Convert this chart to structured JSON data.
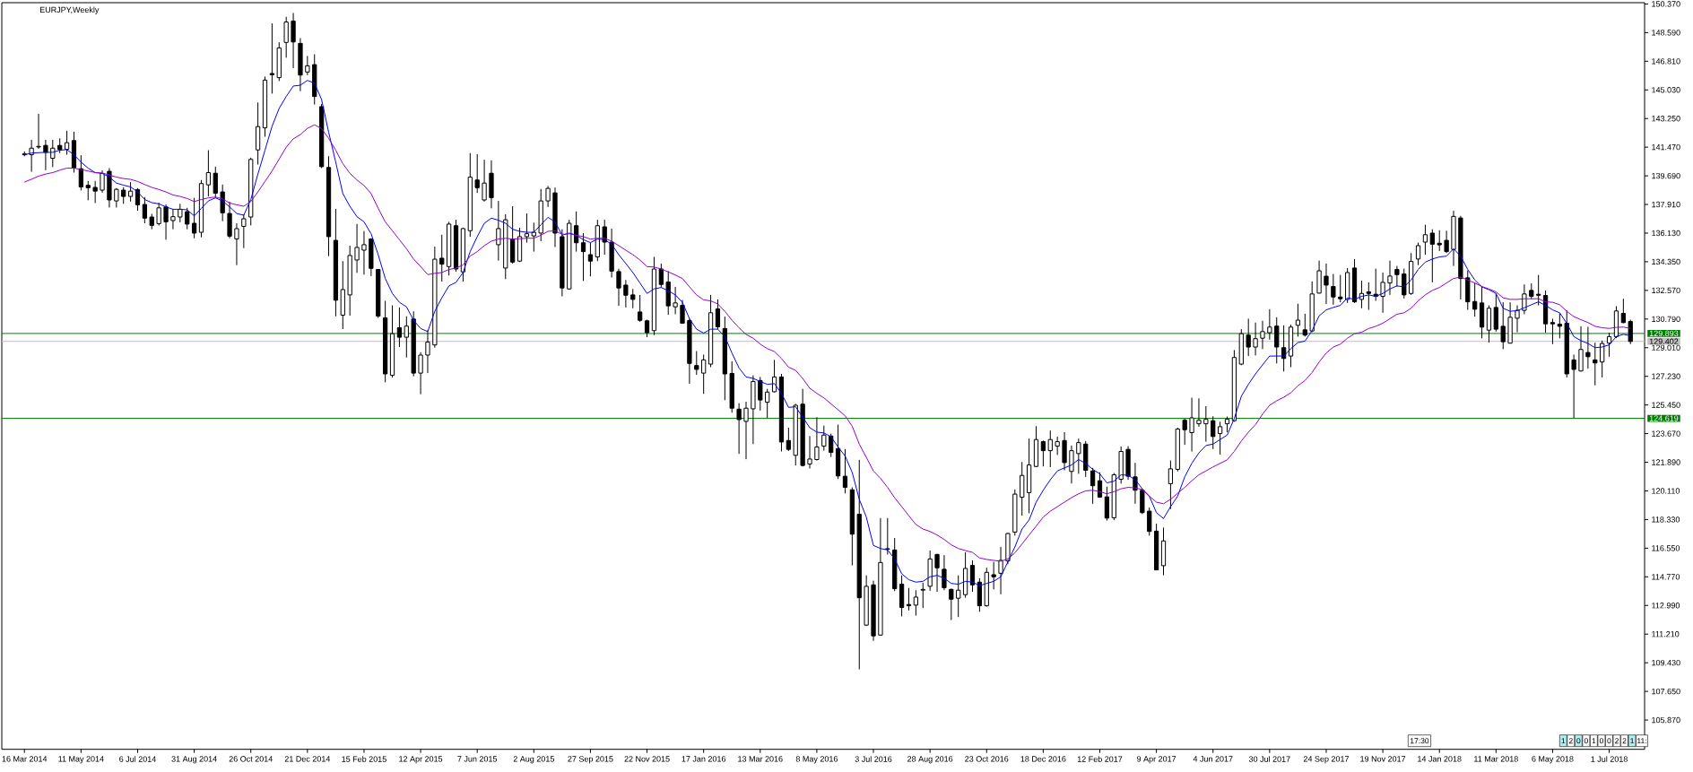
{
  "chart_data": {
    "type": "candlestick",
    "title": "EURJPY,Weekly",
    "categories": [
      "16 Mar 2014",
      null,
      null,
      null,
      null,
      null,
      null,
      null,
      "11 May 2014",
      null,
      null,
      null,
      null,
      null,
      null,
      null,
      "6 Jul 2014",
      null,
      null,
      null,
      null,
      null,
      null,
      null,
      "31 Aug 2014",
      null,
      null,
      null,
      null,
      null,
      null,
      null,
      "26 Oct 2014",
      null,
      null,
      null,
      null,
      null,
      null,
      null,
      "21 Dec 2014",
      null,
      null,
      null,
      null,
      null,
      null,
      null,
      "15 Feb 2015",
      null,
      null,
      null,
      null,
      null,
      null,
      null,
      "12 Apr 2015",
      null,
      null,
      null,
      null,
      null,
      null,
      null,
      "7 Jun 2015",
      null,
      null,
      null,
      null,
      null,
      null,
      null,
      "2 Aug 2015",
      null,
      null,
      null,
      null,
      null,
      null,
      null,
      "27 Sep 2015",
      null,
      null,
      null,
      null,
      null,
      null,
      null,
      "22 Nov 2015",
      null,
      null,
      null,
      null,
      null,
      null,
      null,
      "17 Jan 2016",
      null,
      null,
      null,
      null,
      null,
      null,
      null,
      "13 Mar 2016",
      null,
      null,
      null,
      null,
      null,
      null,
      null,
      "8 May 2016",
      null,
      null,
      null,
      null,
      null,
      null,
      null,
      "3 Jul 2016",
      null,
      null,
      null,
      null,
      null,
      null,
      null,
      "28 Aug 2016",
      null,
      null,
      null,
      null,
      null,
      null,
      null,
      "23 Oct 2016",
      null,
      null,
      null,
      null,
      null,
      null,
      null,
      "18 Dec 2016",
      null,
      null,
      null,
      null,
      null,
      null,
      null,
      "12 Feb 2017",
      null,
      null,
      null,
      null,
      null,
      null,
      null,
      "9 Apr 2017",
      null,
      null,
      null,
      null,
      null,
      null,
      null,
      "4 Jun 2017",
      null,
      null,
      null,
      null,
      null,
      null,
      null,
      "30 Jul 2017",
      null,
      null,
      null,
      null,
      null,
      null,
      null,
      "24 Sep 2017",
      null,
      null,
      null,
      null,
      null,
      null,
      null,
      "19 Nov 2017",
      null,
      null,
      null,
      null,
      null,
      null,
      null,
      "14 Jan 2018",
      null,
      null,
      null,
      null,
      null,
      null,
      null,
      "11 Mar 2018",
      null,
      null,
      null,
      null,
      null,
      null,
      null,
      "6 May 2018",
      null,
      null,
      null,
      null,
      null,
      null,
      null,
      "1 Jul 2018",
      null,
      null,
      null
    ],
    "ohlc": [
      [
        141.05,
        141.2,
        140.9,
        141.0
      ],
      [
        141.0,
        141.93,
        139.94,
        141.41
      ],
      [
        141.48,
        143.54,
        141.37,
        141.52
      ],
      [
        141.58,
        141.93,
        140.04,
        141.15
      ],
      [
        140.78,
        141.93,
        140.23,
        141.41
      ],
      [
        141.58,
        142.02,
        141.1,
        141.32
      ],
      [
        141.34,
        142.49,
        141.0,
        141.75
      ],
      [
        141.88,
        142.43,
        139.89,
        140.17
      ],
      [
        140.13,
        140.97,
        138.78,
        139.0
      ],
      [
        139.1,
        139.37,
        138.17,
        138.95
      ],
      [
        138.97,
        139.37,
        138.0,
        138.74
      ],
      [
        138.8,
        140.02,
        138.65,
        139.84
      ],
      [
        139.97,
        140.17,
        137.72,
        138.19
      ],
      [
        138.13,
        138.93,
        137.72,
        138.85
      ],
      [
        138.8,
        138.98,
        137.95,
        138.41
      ],
      [
        138.41,
        139.3,
        138.09,
        138.74
      ],
      [
        138.84,
        138.93,
        137.52,
        137.89
      ],
      [
        137.91,
        138.37,
        136.74,
        137.06
      ],
      [
        137.13,
        137.33,
        136.37,
        136.61
      ],
      [
        136.72,
        138.02,
        136.61,
        137.7
      ],
      [
        137.76,
        137.91,
        135.72,
        136.83
      ],
      [
        136.91,
        137.63,
        136.37,
        137.15
      ],
      [
        137.13,
        137.95,
        136.8,
        137.61
      ],
      [
        137.46,
        137.7,
        136.37,
        136.69
      ],
      [
        136.74,
        138.32,
        135.81,
        136.13
      ],
      [
        136.18,
        139.43,
        135.87,
        139.21
      ],
      [
        139.13,
        141.28,
        138.41,
        139.89
      ],
      [
        139.85,
        140.26,
        138.32,
        138.61
      ],
      [
        138.69,
        139.15,
        136.87,
        137.39
      ],
      [
        137.35,
        138.08,
        135.81,
        135.94
      ],
      [
        135.77,
        136.74,
        134.14,
        136.41
      ],
      [
        136.55,
        137.3,
        135.2,
        137.02
      ],
      [
        137.13,
        140.82,
        136.61,
        140.71
      ],
      [
        141.3,
        144.25,
        140.39,
        142.75
      ],
      [
        142.67,
        145.86,
        142.12,
        145.64
      ],
      [
        146.05,
        149.16,
        144.8,
        145.97
      ],
      [
        145.79,
        147.99,
        145.58,
        147.64
      ],
      [
        147.98,
        149.57,
        147.03,
        149.25
      ],
      [
        149.31,
        149.81,
        146.38,
        148.01
      ],
      [
        147.92,
        148.25,
        144.95,
        145.95
      ],
      [
        146.14,
        147.14,
        145.95,
        146.53
      ],
      [
        146.6,
        147.25,
        144.12,
        144.62
      ],
      [
        143.99,
        144.16,
        140.17,
        140.26
      ],
      [
        140.21,
        140.91,
        134.7,
        135.91
      ],
      [
        135.68,
        137.63,
        130.96,
        131.96
      ],
      [
        131.03,
        134.39,
        130.16,
        132.62
      ],
      [
        132.29,
        135.35,
        131.0,
        134.74
      ],
      [
        134.46,
        136.7,
        133.66,
        135.24
      ],
      [
        135.07,
        136.26,
        133.55,
        135.41
      ],
      [
        135.76,
        135.81,
        133.46,
        133.94
      ],
      [
        133.87,
        133.9,
        130.86,
        130.97
      ],
      [
        130.86,
        131.92,
        126.86,
        127.38
      ],
      [
        127.29,
        131.64,
        127.15,
        129.88
      ],
      [
        130.25,
        131.51,
        129.05,
        129.66
      ],
      [
        129.66,
        130.96,
        128.4,
        130.35
      ],
      [
        130.79,
        131.27,
        127.23,
        127.43
      ],
      [
        127.43,
        128.73,
        126.12,
        128.55
      ],
      [
        128.55,
        130.1,
        127.43,
        129.36
      ],
      [
        129.18,
        135.29,
        129.01,
        134.51
      ],
      [
        134.57,
        136.03,
        133.12,
        134.2
      ],
      [
        134.05,
        136.83,
        133.5,
        136.69
      ],
      [
        136.59,
        136.96,
        133.74,
        133.9
      ],
      [
        133.72,
        136.46,
        133.12,
        136.41
      ],
      [
        136.28,
        141.1,
        135.9,
        139.61
      ],
      [
        139.43,
        141.04,
        138.63,
        138.95
      ],
      [
        138.19,
        140.69,
        138.09,
        139.24
      ],
      [
        139.85,
        140.65,
        137.67,
        138.33
      ],
      [
        135.41,
        138.13,
        134.42,
        136.41
      ],
      [
        133.96,
        137.3,
        133.27,
        136.96
      ],
      [
        135.76,
        137.8,
        134.24,
        134.33
      ],
      [
        134.39,
        136.46,
        134.33,
        135.91
      ],
      [
        135.91,
        137.35,
        135.54,
        136.09
      ],
      [
        135.96,
        136.78,
        134.98,
        136.18
      ],
      [
        136.13,
        138.87,
        135.63,
        138.13
      ],
      [
        138.13,
        139.06,
        137.76,
        138.91
      ],
      [
        138.63,
        138.96,
        135.26,
        136.13
      ],
      [
        135.91,
        136.37,
        132.2,
        132.72
      ],
      [
        132.66,
        136.96,
        132.61,
        136.74
      ],
      [
        136.59,
        137.48,
        134.98,
        135.53
      ],
      [
        135.53,
        136.13,
        133.16,
        134.98
      ],
      [
        134.79,
        135.53,
        133.44,
        134.39
      ],
      [
        134.65,
        136.96,
        134.39,
        136.59
      ],
      [
        136.52,
        136.96,
        134.79,
        135.57
      ],
      [
        135.57,
        136.41,
        133.37,
        133.77
      ],
      [
        133.74,
        133.92,
        131.61,
        132.72
      ],
      [
        132.9,
        133.22,
        131.51,
        132.27
      ],
      [
        132.29,
        132.66,
        131.46,
        132.01
      ],
      [
        131.23,
        132.29,
        130.62,
        130.71
      ],
      [
        130.68,
        130.75,
        129.66,
        129.94
      ],
      [
        130.07,
        134.65,
        129.79,
        133.9
      ],
      [
        133.9,
        134.24,
        132.75,
        132.94
      ],
      [
        133.09,
        133.77,
        131.05,
        131.61
      ],
      [
        131.55,
        132.79,
        131.09,
        131.79
      ],
      [
        131.64,
        131.97,
        130.49,
        130.53
      ],
      [
        130.7,
        130.81,
        126.77,
        128.03
      ],
      [
        127.9,
        128.8,
        127.32,
        127.66
      ],
      [
        127.43,
        128.58,
        126.14,
        128.25
      ],
      [
        127.99,
        132.29,
        127.8,
        131.18
      ],
      [
        131.42,
        132.01,
        130.16,
        130.31
      ],
      [
        130.2,
        130.94,
        125.75,
        127.38
      ],
      [
        127.41,
        128.16,
        124.97,
        125.25
      ],
      [
        125.19,
        125.56,
        122.41,
        124.54
      ],
      [
        124.43,
        125.65,
        122.08,
        125.25
      ],
      [
        125.21,
        127.29,
        123.02,
        126.91
      ],
      [
        126.97,
        127.19,
        125.1,
        125.76
      ],
      [
        125.62,
        126.45,
        124.65,
        126.25
      ],
      [
        126.27,
        128.25,
        126.23,
        127.19
      ],
      [
        127.19,
        127.38,
        122.56,
        123.15
      ],
      [
        123.24,
        124.04,
        122.59,
        122.69
      ],
      [
        122.32,
        125.52,
        121.69,
        125.43
      ],
      [
        125.5,
        126.45,
        121.63,
        121.69
      ],
      [
        121.78,
        123.52,
        121.5,
        122.09
      ],
      [
        122.06,
        124.69,
        122.0,
        122.84
      ],
      [
        122.89,
        124.17,
        122.61,
        123.58
      ],
      [
        123.52,
        123.67,
        122.22,
        122.5
      ],
      [
        122.74,
        124.23,
        120.85,
        121.04
      ],
      [
        121.02,
        122.71,
        119.96,
        120.33
      ],
      [
        120.18,
        120.33,
        115.48,
        117.42
      ],
      [
        118.66,
        122.04,
        109.02,
        113.47
      ],
      [
        111.77,
        114.86,
        111.71,
        114.18
      ],
      [
        114.27,
        114.53,
        110.79,
        111.1
      ],
      [
        111.15,
        118.42,
        111.12,
        115.66
      ],
      [
        116.48,
        118.42,
        116.16,
        116.52
      ],
      [
        116.44,
        117.18,
        113.88,
        114.03
      ],
      [
        114.31,
        114.86,
        112.31,
        112.86
      ],
      [
        113.05,
        114.08,
        112.68,
        112.97
      ],
      [
        113.01,
        113.94,
        112.36,
        113.51
      ],
      [
        113.94,
        114.4,
        112.83,
        113.99
      ],
      [
        114.18,
        116.4,
        113.9,
        115.88
      ],
      [
        116.16,
        116.2,
        113.84,
        115.33
      ],
      [
        115.24,
        116.12,
        113.94,
        114.09
      ],
      [
        113.99,
        114.04,
        112.08,
        113.38
      ],
      [
        113.44,
        114.86,
        112.27,
        113.94
      ],
      [
        113.66,
        116.29,
        113.47,
        115.29
      ],
      [
        115.48,
        115.79,
        113.84,
        114.27
      ],
      [
        114.44,
        114.68,
        112.6,
        112.97
      ],
      [
        112.97,
        115.33,
        112.92,
        115.05
      ],
      [
        114.9,
        115.7,
        113.99,
        114.77
      ],
      [
        114.99,
        116.63,
        113.69,
        115.79
      ],
      [
        115.76,
        117.5,
        115.55,
        117.46
      ],
      [
        117.55,
        120.2,
        117.33,
        119.91
      ],
      [
        119.72,
        121.91,
        118.57,
        121.07
      ],
      [
        120.0,
        123.36,
        118.72,
        121.72
      ],
      [
        121.63,
        124.13,
        121.59,
        123.3
      ],
      [
        123.17,
        123.24,
        121.63,
        122.61
      ],
      [
        122.61,
        123.86,
        121.59,
        123.3
      ],
      [
        122.89,
        123.48,
        122.34,
        123.17
      ],
      [
        123.24,
        123.76,
        121.39,
        121.87
      ],
      [
        121.32,
        122.93,
        120.57,
        122.61
      ],
      [
        122.43,
        123.36,
        121.17,
        123.11
      ],
      [
        123.02,
        123.21,
        120.98,
        121.39
      ],
      [
        121.35,
        121.54,
        119.31,
        120.43
      ],
      [
        120.74,
        121.26,
        119.68,
        119.72
      ],
      [
        119.74,
        120.37,
        118.26,
        118.42
      ],
      [
        118.44,
        121.22,
        118.29,
        121.11
      ],
      [
        120.83,
        122.87,
        120.56,
        122.56
      ],
      [
        122.69,
        122.89,
        120.8,
        121.02
      ],
      [
        120.98,
        121.85,
        119.31,
        120.15
      ],
      [
        120.15,
        120.24,
        118.67,
        118.76
      ],
      [
        118.85,
        119.07,
        117.33,
        117.59
      ],
      [
        117.61,
        118.07,
        115.2,
        115.2
      ],
      [
        115.46,
        117.83,
        114.87,
        117.0
      ],
      [
        120.56,
        122.0,
        118.98,
        121.48
      ],
      [
        121.45,
        124.04,
        121.32,
        123.95
      ],
      [
        124.5,
        124.6,
        122.97,
        123.91
      ],
      [
        123.73,
        125.9,
        122.56,
        124.65
      ],
      [
        124.28,
        125.86,
        124.1,
        124.5
      ],
      [
        124.28,
        125.38,
        123.17,
        124.56
      ],
      [
        124.47,
        124.75,
        122.71,
        123.49
      ],
      [
        123.67,
        124.41,
        122.37,
        124.1
      ],
      [
        124.28,
        124.73,
        123.76,
        124.56
      ],
      [
        124.47,
        128.86,
        124.41,
        128.4
      ],
      [
        127.99,
        130.16,
        127.92,
        129.88
      ],
      [
        129.79,
        130.81,
        128.49,
        129.05
      ],
      [
        129.05,
        130.57,
        128.53,
        129.57
      ],
      [
        129.6,
        130.68,
        128.92,
        130.01
      ],
      [
        129.94,
        131.4,
        129.51,
        130.29
      ],
      [
        130.35,
        130.9,
        128.03,
        129.05
      ],
      [
        129.01,
        130.4,
        127.53,
        128.34
      ],
      [
        128.49,
        130.44,
        127.8,
        130.29
      ],
      [
        130.4,
        131.74,
        129.7,
        130.72
      ],
      [
        130.12,
        131.12,
        129.7,
        129.79
      ],
      [
        130.05,
        133.13,
        129.97,
        132.35
      ],
      [
        132.4,
        134.42,
        132.38,
        133.79
      ],
      [
        133.45,
        134.24,
        131.72,
        132.9
      ],
      [
        132.81,
        133.59,
        131.68,
        132.16
      ],
      [
        132.16,
        133.53,
        131.83,
        132.05
      ],
      [
        132.01,
        133.96,
        131.79,
        133.68
      ],
      [
        133.96,
        134.52,
        131.79,
        131.86
      ],
      [
        132.01,
        133.18,
        131.46,
        132.38
      ],
      [
        132.48,
        133.07,
        131.36,
        132.38
      ],
      [
        132.33,
        133.92,
        131.92,
        132.2
      ],
      [
        132.2,
        133.68,
        131.18,
        133.07
      ],
      [
        133.03,
        134.42,
        132.29,
        133.46
      ],
      [
        133.87,
        134.09,
        132.81,
        133.55
      ],
      [
        133.59,
        133.92,
        132.07,
        132.29
      ],
      [
        132.38,
        134.89,
        132.29,
        134.37
      ],
      [
        134.52,
        135.54,
        134.14,
        135.35
      ],
      [
        135.57,
        136.65,
        134.79,
        136.03
      ],
      [
        136.13,
        136.37,
        133.07,
        135.44
      ],
      [
        135.5,
        136.31,
        135.02,
        135.4
      ],
      [
        135.68,
        136.28,
        134.89,
        134.98
      ],
      [
        135.11,
        137.52,
        134.09,
        137.17
      ],
      [
        137.07,
        137.2,
        132.01,
        133.31
      ],
      [
        133.35,
        133.81,
        131.36,
        131.86
      ],
      [
        131.88,
        133.03,
        130.94,
        131.4
      ],
      [
        131.79,
        132.81,
        129.59,
        130.29
      ],
      [
        130.1,
        131.64,
        129.33,
        131.46
      ],
      [
        131.51,
        132.38,
        130.01,
        130.16
      ],
      [
        130.34,
        131.83,
        128.92,
        129.38
      ],
      [
        129.29,
        131.83,
        129.27,
        130.9
      ],
      [
        130.84,
        131.64,
        129.97,
        131.33
      ],
      [
        131.33,
        132.94,
        131.09,
        132.35
      ],
      [
        132.57,
        133.0,
        132.05,
        132.2
      ],
      [
        132.33,
        133.53,
        131.64,
        132.27
      ],
      [
        132.25,
        132.57,
        129.94,
        130.49
      ],
      [
        130.57,
        130.81,
        129.23,
        130.49
      ],
      [
        130.47,
        131.14,
        129.59,
        130.34
      ],
      [
        130.53,
        131.33,
        127.16,
        127.38
      ],
      [
        128.25,
        128.58,
        124.63,
        127.66
      ],
      [
        127.56,
        130.34,
        127.53,
        128.9
      ],
      [
        128.71,
        130.31,
        127.71,
        128.45
      ],
      [
        128.25,
        129.32,
        126.67,
        128.06
      ],
      [
        128.12,
        129.45,
        127.16,
        129.27
      ],
      [
        129.29,
        129.94,
        128.45,
        129.7
      ],
      [
        129.7,
        131.59,
        129.6,
        131.29
      ],
      [
        131.14,
        132.05,
        130.53,
        130.57
      ],
      [
        130.64,
        130.75,
        129.23,
        129.4
      ]
    ],
    "series": [
      {
        "type": "line",
        "color": "#0000ff",
        "values": [
          141.0,
          141.1,
          141.13,
          141.15,
          141.15,
          141.28,
          141.32,
          141.0,
          140.54,
          140.17,
          139.89,
          139.84,
          139.61,
          139.24,
          139.11,
          139.0,
          138.69,
          138.22,
          138.02,
          137.95,
          137.76,
          137.61,
          137.61,
          137.58,
          137.2,
          137.67,
          138.13,
          138.32,
          138.13,
          137.76,
          137.35,
          137.24,
          138.22,
          139.8,
          141.28,
          142.77,
          143.88,
          144.62,
          145.27,
          145.32,
          145.62,
          145.45,
          144.43,
          142.4,
          140.54,
          138.59,
          137.8,
          137.15,
          136.83,
          136.09,
          134.79,
          133.31,
          132.38,
          131.83,
          131.55,
          130.72,
          130.2,
          130.01,
          131.27,
          132.11,
          132.85,
          133.07,
          133.68,
          134.98,
          135.91,
          136.74,
          137.06,
          136.93,
          136.74,
          136.37,
          136.24,
          136.18,
          136.18,
          136.65,
          137.11,
          136.83,
          136.0,
          136.13,
          136.0,
          135.72,
          135.54,
          135.76,
          135.72,
          135.44,
          134.79,
          134.24,
          133.68,
          133.03,
          132.38,
          132.66,
          132.75,
          132.55,
          132.29,
          131.83,
          130.81,
          130.16,
          129.92,
          130.16,
          130.16,
          129.7,
          128.68,
          127.75,
          127.19,
          127.1,
          126.91,
          126.73,
          126.78,
          126.17,
          125.3,
          125.34,
          124.69,
          124.04,
          123.76,
          123.71,
          123.48,
          122.84,
          122.28,
          121.26,
          119.59,
          118.48,
          116.72,
          116.53,
          116.44,
          115.88,
          114.96,
          114.59,
          114.44,
          114.49,
          114.77,
          114.86,
          114.68,
          114.36,
          114.31,
          114.49,
          114.44,
          114.22,
          114.36,
          114.49,
          114.77,
          115.7,
          116.63,
          117.74,
          118.3,
          119.41,
          120.15,
          120.8,
          121.35,
          121.54,
          121.72,
          122.06,
          121.82,
          121.45,
          121.17,
          120.61,
          120.71,
          121.11,
          121.08,
          120.8,
          120.24,
          119.78,
          118.76,
          118.39,
          119.13,
          119.78,
          120.98,
          121.82,
          122.47,
          122.93,
          123.02,
          123.3,
          123.58,
          124.6,
          125.99,
          126.73,
          127.38,
          127.94,
          128.49,
          128.49,
          128.49,
          128.95,
          129.33,
          129.42,
          130.07,
          130.99,
          131.36,
          131.51,
          131.64,
          132.11,
          132.01,
          132.2,
          132.29,
          132.2,
          132.38,
          132.66,
          132.85,
          132.79,
          133.22,
          133.87,
          134.33,
          134.52,
          134.65,
          134.7,
          135.16,
          134.7,
          133.87,
          133.22,
          132.79,
          132.61,
          132.38,
          131.46,
          131.27,
          131.31,
          131.49,
          131.68,
          131.86,
          131.64,
          131.36,
          131.18,
          130.53,
          129.7,
          129.45,
          129.27,
          129.01,
          129.05,
          129.19,
          129.7,
          129.84,
          129.75
        ]
      },
      {
        "type": "line",
        "color": "#9400d3",
        "values": [
          139.3,
          139.48,
          139.67,
          139.8,
          139.89,
          140.04,
          140.17,
          140.17,
          140.08,
          139.99,
          139.89,
          139.86,
          139.74,
          139.61,
          139.52,
          139.47,
          139.34,
          139.15,
          138.97,
          138.84,
          138.69,
          138.5,
          138.41,
          138.28,
          138.09,
          138.22,
          138.32,
          138.37,
          138.26,
          138.0,
          137.89,
          137.8,
          138.09,
          138.69,
          139.34,
          139.99,
          140.73,
          141.47,
          141.99,
          142.25,
          142.64,
          142.86,
          142.62,
          142.02,
          141.28,
          140.45,
          139.85,
          139.43,
          139.09,
          138.59,
          137.67,
          136.83,
          136.28,
          135.72,
          135.16,
          134.52,
          134.05,
          133.55,
          133.63,
          133.68,
          133.87,
          133.96,
          134.15,
          134.7,
          134.98,
          135.35,
          135.63,
          135.76,
          135.81,
          135.76,
          135.78,
          135.81,
          135.81,
          136.0,
          136.24,
          136.28,
          136.05,
          136.09,
          136.0,
          135.91,
          135.76,
          135.81,
          135.81,
          135.63,
          135.35,
          135.07,
          134.79,
          134.46,
          134.05,
          134.02,
          133.9,
          133.72,
          133.53,
          133.31,
          132.79,
          132.29,
          131.98,
          131.92,
          131.73,
          131.27,
          130.72,
          130.25,
          129.83,
          129.6,
          129.23,
          128.95,
          128.77,
          128.34,
          127.8,
          127.6,
          127.1,
          126.49,
          126.17,
          125.89,
          125.52,
          125.15,
          124.78,
          124.13,
          123.02,
          122.19,
          121.35,
          120.89,
          120.33,
          119.68,
          119.13,
          118.57,
          118.02,
          117.74,
          117.59,
          117.37,
          117.09,
          116.76,
          116.53,
          116.4,
          116.29,
          115.94,
          115.85,
          115.79,
          115.74,
          115.88,
          116.26,
          116.81,
          117.37,
          117.92,
          118.48,
          118.85,
          119.13,
          119.41,
          119.69,
          119.93,
          120.11,
          120.15,
          120.06,
          119.93,
          120.06,
          120.24,
          120.33,
          120.3,
          120.19,
          119.78,
          119.41,
          119.31,
          119.59,
          119.96,
          120.33,
          120.74,
          121.11,
          121.35,
          121.6,
          121.82,
          122.04,
          122.56,
          123.21,
          123.76,
          124.23,
          124.88,
          125.43,
          125.71,
          125.93,
          126.21,
          126.64,
          126.97,
          127.47,
          128.12,
          128.68,
          129.05,
          129.23,
          129.6,
          129.88,
          129.97,
          130.2,
          130.34,
          130.53,
          130.81,
          131.09,
          131.18,
          131.46,
          131.92,
          132.29,
          132.57,
          132.75,
          133.03,
          133.31,
          133.4,
          133.22,
          133.03,
          132.81,
          132.66,
          132.48,
          132.11,
          132.01,
          132.01,
          132.05,
          132.05,
          132.05,
          131.86,
          131.83,
          131.68,
          131.27,
          130.94,
          130.75,
          130.57,
          130.34,
          130.25,
          130.21,
          130.27,
          130.29,
          130.21
        ]
      }
    ],
    "ylim": [
      104.05,
      150.45
    ],
    "yticks": [
      {
        "value": 105.87,
        "label": "105.870"
      },
      {
        "value": 107.65,
        "label": "107.650"
      },
      {
        "value": 109.43,
        "label": "109.430"
      },
      {
        "value": 111.21,
        "label": "111.210"
      },
      {
        "value": 112.99,
        "label": "112.990"
      },
      {
        "value": 114.77,
        "label": "114.770"
      },
      {
        "value": 116.55,
        "label": "116.550"
      },
      {
        "value": 118.33,
        "label": "118.330"
      },
      {
        "value": 120.11,
        "label": "120.110"
      },
      {
        "value": 121.89,
        "label": "121.890"
      },
      {
        "value": 123.67,
        "label": "123.670"
      },
      {
        "value": 125.45,
        "label": "125.450"
      },
      {
        "value": 127.23,
        "label": "127.230"
      },
      {
        "value": 129.01,
        "label": "129.010"
      },
      {
        "value": 130.79,
        "label": "130.790"
      },
      {
        "value": 132.57,
        "label": "132.570"
      },
      {
        "value": 134.35,
        "label": "134.350"
      },
      {
        "value": 136.13,
        "label": "136.130"
      },
      {
        "value": 137.91,
        "label": "137.910"
      },
      {
        "value": 139.69,
        "label": "139.690"
      },
      {
        "value": 141.47,
        "label": "141.470"
      },
      {
        "value": 143.25,
        "label": "143.250"
      },
      {
        "value": 145.03,
        "label": "145.030"
      },
      {
        "value": 146.81,
        "label": "146.810"
      },
      {
        "value": 148.59,
        "label": "148.590"
      },
      {
        "value": 150.37,
        "label": "150.370"
      }
    ],
    "ref_lines": [
      {
        "axis": "y",
        "value": 129.893,
        "label": "129.893",
        "color": "#008000"
      },
      {
        "axis": "y",
        "value": 129.402,
        "label": "129.402",
        "color": "#c0c0c0"
      },
      {
        "axis": "y",
        "value": 124.619,
        "label": "124.619",
        "color": "#008000"
      }
    ],
    "annotations": [
      "17:30",
      "1",
      "2",
      "0",
      "0",
      "1",
      "0",
      "0",
      "2",
      "2",
      "1",
      "11:"
    ]
  }
}
